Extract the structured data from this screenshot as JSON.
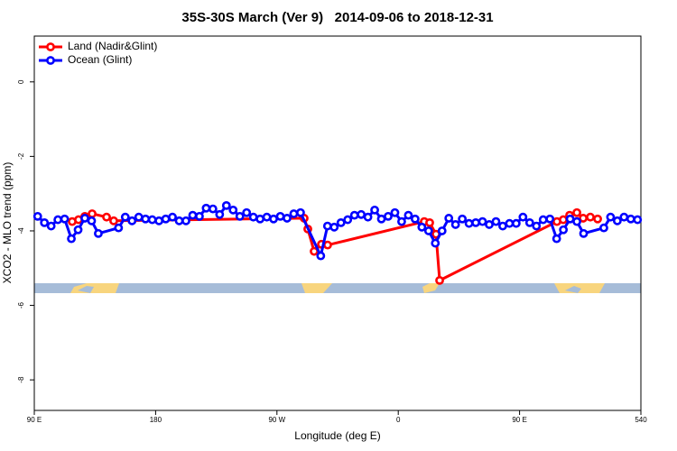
{
  "chart_data": {
    "type": "line",
    "title": "35S-30S March (Ver 9)   2014-09-06 to 2018-12-31",
    "x_label": "Longitude (deg E)",
    "y_label": "XCO2 - MLO trend (ppm)",
    "xlim": [
      90,
      540
    ],
    "ylim": [
      -8.82,
      1.23
    ],
    "xticks": [
      {
        "value": 90,
        "label": "90 E"
      },
      180,
      {
        "value": 270,
        "label": "90 W"
      },
      {
        "value": 360,
        "label": "0"
      },
      {
        "value": 450,
        "label": "90 E"
      },
      540
    ],
    "yticks": [
      0,
      -2,
      -4,
      -6,
      -8
    ],
    "legend": "top-left",
    "series": [
      {
        "name": "Land (Nadir&Glint)",
        "color": "#ff0000",
        "x": [
          118.1,
          122.8,
          127.5,
          132.9,
          143.6,
          148.9,
          290.2,
          292.9,
          297.6,
          303.0,
          307.6,
          379.3,
          383.3,
          388.0,
          390.7,
          477.7,
          482.4,
          487.1,
          492.5,
          497.2,
          502.5,
          507.9
        ],
        "values": [
          -3.75,
          -3.7,
          -3.61,
          -3.54,
          -3.63,
          -3.73,
          -3.66,
          -3.95,
          -4.55,
          -4.36,
          -4.38,
          -3.75,
          -3.78,
          -4.09,
          -5.33,
          -3.75,
          -3.7,
          -3.58,
          -3.51,
          -3.66,
          -3.63,
          -3.68
        ]
      },
      {
        "name": "Ocean (Glint)",
        "color": "#0000ff",
        "x": [
          92.5,
          97.5,
          102.5,
          107.5,
          112.5,
          117.5,
          122.5,
          127.5,
          132.5,
          137.5,
          152.5,
          157.5,
          162.5,
          167.5,
          172.5,
          177.5,
          182.5,
          187.5,
          192.5,
          197.5,
          202.5,
          207.5,
          212.5,
          217.5,
          222.5,
          227.5,
          232.5,
          237.5,
          242.5,
          247.5,
          252.5,
          257.5,
          262.5,
          267.5,
          272.5,
          277.5,
          282.5,
          287.5,
          302.5,
          307.5,
          312.5,
          317.5,
          322.5,
          327.5,
          332.5,
          337.5,
          342.5,
          347.5,
          352.5,
          357.5,
          362.5,
          367.5,
          372.5,
          377.5,
          382.5,
          387.5,
          392.5,
          397.5,
          402.5,
          407.5,
          412.5,
          417.5,
          422.5,
          427.5,
          432.5,
          437.5,
          442.5,
          447.5,
          452.5,
          457.5,
          462.5,
          467.5,
          472.5,
          477.5,
          482.5,
          487.5,
          492.5,
          497.5,
          512.5,
          517.5,
          522.5,
          527.5,
          532.5,
          537.5
        ],
        "values": [
          -3.61,
          -3.78,
          -3.87,
          -3.7,
          -3.68,
          -4.21,
          -3.97,
          -3.66,
          -3.73,
          -4.07,
          -3.92,
          -3.63,
          -3.73,
          -3.63,
          -3.68,
          -3.7,
          -3.73,
          -3.68,
          -3.63,
          -3.73,
          -3.73,
          -3.58,
          -3.61,
          -3.39,
          -3.41,
          -3.56,
          -3.32,
          -3.44,
          -3.61,
          -3.51,
          -3.63,
          -3.68,
          -3.63,
          -3.68,
          -3.61,
          -3.66,
          -3.54,
          -3.51,
          -4.67,
          -3.87,
          -3.9,
          -3.78,
          -3.7,
          -3.58,
          -3.56,
          -3.63,
          -3.44,
          -3.68,
          -3.61,
          -3.51,
          -3.75,
          -3.58,
          -3.68,
          -3.9,
          -4.0,
          -4.33,
          -4.0,
          -3.66,
          -3.83,
          -3.68,
          -3.8,
          -3.78,
          -3.75,
          -3.83,
          -3.75,
          -3.87,
          -3.8,
          -3.8,
          -3.63,
          -3.78,
          -3.87,
          -3.7,
          -3.68,
          -4.21,
          -3.97,
          -3.68,
          -3.75,
          -4.07,
          -3.92,
          -3.63,
          -3.73,
          -3.63,
          -3.68,
          -3.7
        ]
      }
    ]
  }
}
